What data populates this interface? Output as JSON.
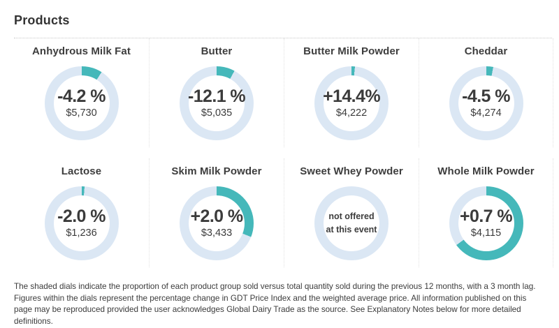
{
  "page": {
    "title": "Products"
  },
  "colors": {
    "dial_fill": "#45b8ba",
    "dial_track": "#dbe7f4"
  },
  "products": [
    {
      "name": "Anhydrous Milk Fat",
      "change": "-4.2 %",
      "price": "$5,730",
      "sold_share_pct": 9
    },
    {
      "name": "Butter",
      "change": "-12.1 %",
      "price": "$5,035",
      "sold_share_pct": 8
    },
    {
      "name": "Butter Milk Powder",
      "change": "+14.4%",
      "price": "$4,222",
      "sold_share_pct": 1.5
    },
    {
      "name": "Cheddar",
      "change": "-4.5 %",
      "price": "$4,274",
      "sold_share_pct": 3
    },
    {
      "name": "Lactose",
      "change": "-2.0 %",
      "price": "$1,236",
      "sold_share_pct": 1.2
    },
    {
      "name": "Skim Milk Powder",
      "change": "+2.0 %",
      "price": "$3,433",
      "sold_share_pct": 31
    },
    {
      "name": "Sweet Whey Powder",
      "sold_share_pct": 0,
      "note_lines": [
        "not offered",
        "at this event"
      ]
    },
    {
      "name": "Whole Milk Powder",
      "change": "+0.7 %",
      "price": "$4,115",
      "sold_share_pct": 65
    }
  ],
  "footer": {
    "text": "The shaded dials indicate the proportion of each product group sold versus total quantity sold during the previous 12 months, with a 3 month lag. Figures within the dials represent the percentage change in GDT Price Index and the weighted average price. All information published on this page may be reproduced provided the user acknowledges Global Dairy Trade as the source. See Explanatory Notes below for more detailed definitions."
  },
  "chart_data": [
    {
      "type": "pie",
      "subtype": "donut-gauge",
      "title": "Anhydrous Milk Fat",
      "labels": [
        "sold share",
        "remainder"
      ],
      "values": [
        9,
        91
      ],
      "annotations": [
        "-4.2 %",
        "$5,730"
      ],
      "legend": "none"
    },
    {
      "type": "pie",
      "subtype": "donut-gauge",
      "title": "Butter",
      "labels": [
        "sold share",
        "remainder"
      ],
      "values": [
        8,
        92
      ],
      "annotations": [
        "-12.1 %",
        "$5,035"
      ],
      "legend": "none"
    },
    {
      "type": "pie",
      "subtype": "donut-gauge",
      "title": "Butter Milk Powder",
      "labels": [
        "sold share",
        "remainder"
      ],
      "values": [
        1.5,
        98.5
      ],
      "annotations": [
        "+14.4%",
        "$4,222"
      ],
      "legend": "none"
    },
    {
      "type": "pie",
      "subtype": "donut-gauge",
      "title": "Cheddar",
      "labels": [
        "sold share",
        "remainder"
      ],
      "values": [
        3,
        97
      ],
      "annotations": [
        "-4.5 %",
        "$4,274"
      ],
      "legend": "none"
    },
    {
      "type": "pie",
      "subtype": "donut-gauge",
      "title": "Lactose",
      "labels": [
        "sold share",
        "remainder"
      ],
      "values": [
        1.2,
        98.8
      ],
      "annotations": [
        "-2.0 %",
        "$1,236"
      ],
      "legend": "none"
    },
    {
      "type": "pie",
      "subtype": "donut-gauge",
      "title": "Skim Milk Powder",
      "labels": [
        "sold share",
        "remainder"
      ],
      "values": [
        31,
        69
      ],
      "annotations": [
        "+2.0 %",
        "$3,433"
      ],
      "legend": "none"
    },
    {
      "type": "pie",
      "subtype": "donut-gauge",
      "title": "Sweet Whey Powder",
      "labels": [
        "sold share",
        "remainder"
      ],
      "values": [
        0,
        100
      ],
      "annotations": [
        "not offered at this event"
      ],
      "legend": "none"
    },
    {
      "type": "pie",
      "subtype": "donut-gauge",
      "title": "Whole Milk Powder",
      "labels": [
        "sold share",
        "remainder"
      ],
      "values": [
        65,
        35
      ],
      "annotations": [
        "+0.7 %",
        "$4,115"
      ],
      "legend": "none"
    }
  ]
}
